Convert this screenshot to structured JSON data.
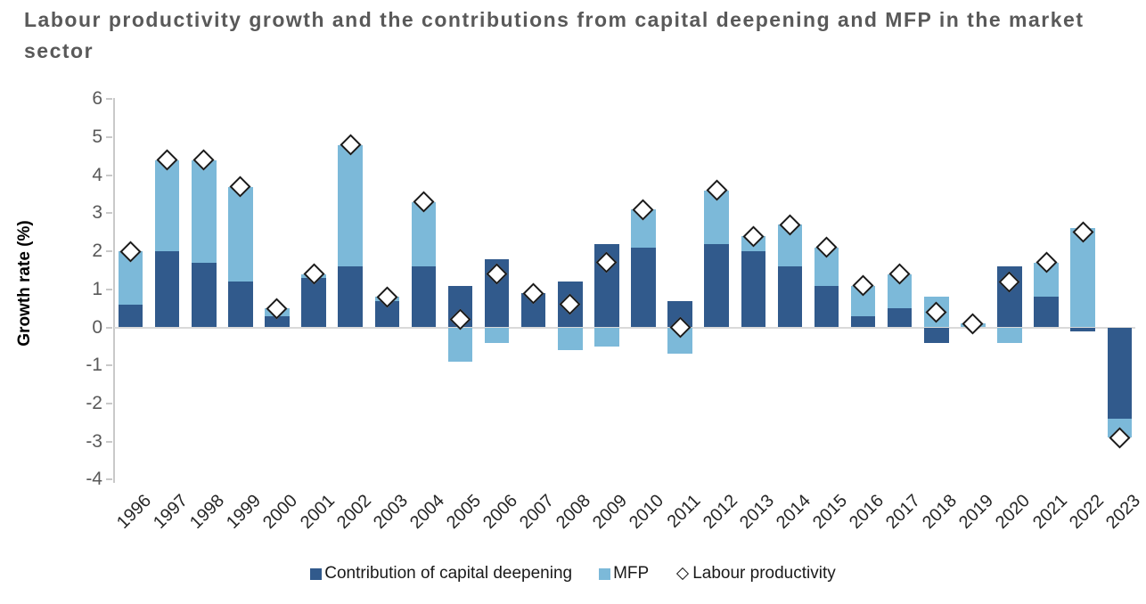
{
  "chart_data": {
    "type": "bar",
    "subtype": "stacked-bars-with-diamond-markers",
    "title": "Labour productivity growth and the contributions from capital deepening and MFP in the market sector",
    "ylabel": "Growth rate (%)",
    "xlabel": "",
    "ylim": [
      -4,
      6
    ],
    "y_ticks": [
      6,
      5,
      4,
      3,
      2,
      1,
      0,
      -1,
      -2,
      -3,
      -4
    ],
    "grid": "zero-line-only",
    "legend_position": "bottom",
    "categories": [
      "1996",
      "1997",
      "1998",
      "1999",
      "2000",
      "2001",
      "2002",
      "2003",
      "2004",
      "2005",
      "2006",
      "2007",
      "2008",
      "2009",
      "2010",
      "2011",
      "2012",
      "2013",
      "2014",
      "2015",
      "2016",
      "2017",
      "2018",
      "2019",
      "2020",
      "2021",
      "2022",
      "2023"
    ],
    "series": [
      {
        "name": "Contribution of capital deepening",
        "render": "bar",
        "color": "#315a8c",
        "values": [
          0.6,
          2.0,
          1.7,
          1.2,
          0.3,
          1.3,
          1.6,
          0.7,
          1.6,
          1.1,
          1.8,
          0.9,
          1.2,
          2.2,
          2.1,
          0.7,
          2.2,
          2.0,
          1.6,
          1.1,
          0.3,
          0.5,
          -0.4,
          0.0,
          1.6,
          0.8,
          -0.1,
          -2.4
        ]
      },
      {
        "name": "MFP",
        "render": "bar",
        "color": "#7cb9d9",
        "values": [
          1.4,
          2.4,
          2.7,
          2.5,
          0.2,
          0.1,
          3.2,
          0.1,
          1.7,
          -0.9,
          -0.4,
          0.0,
          -0.6,
          -0.5,
          1.0,
          -0.7,
          1.4,
          0.4,
          1.1,
          1.0,
          0.8,
          0.9,
          0.8,
          0.1,
          -0.4,
          0.9,
          2.6,
          -0.5
        ]
      },
      {
        "name": "Labour productivity",
        "render": "diamond-marker",
        "marker_fill": "#ffffff",
        "marker_border": "#1a1a1a",
        "values": [
          2.0,
          4.4,
          4.4,
          3.7,
          0.5,
          1.4,
          4.8,
          0.8,
          3.3,
          0.2,
          1.4,
          0.9,
          0.6,
          1.7,
          3.1,
          0.0,
          3.6,
          2.4,
          2.7,
          2.1,
          1.1,
          1.4,
          0.4,
          0.1,
          1.2,
          1.7,
          2.5,
          -2.9
        ]
      }
    ],
    "colors": {
      "title_text": "#595959",
      "axis_line": "#c9c9c9",
      "zero_gridline": "#d9d9d9",
      "tick_label_text": "#595959",
      "x_label_text": "#262626"
    }
  }
}
